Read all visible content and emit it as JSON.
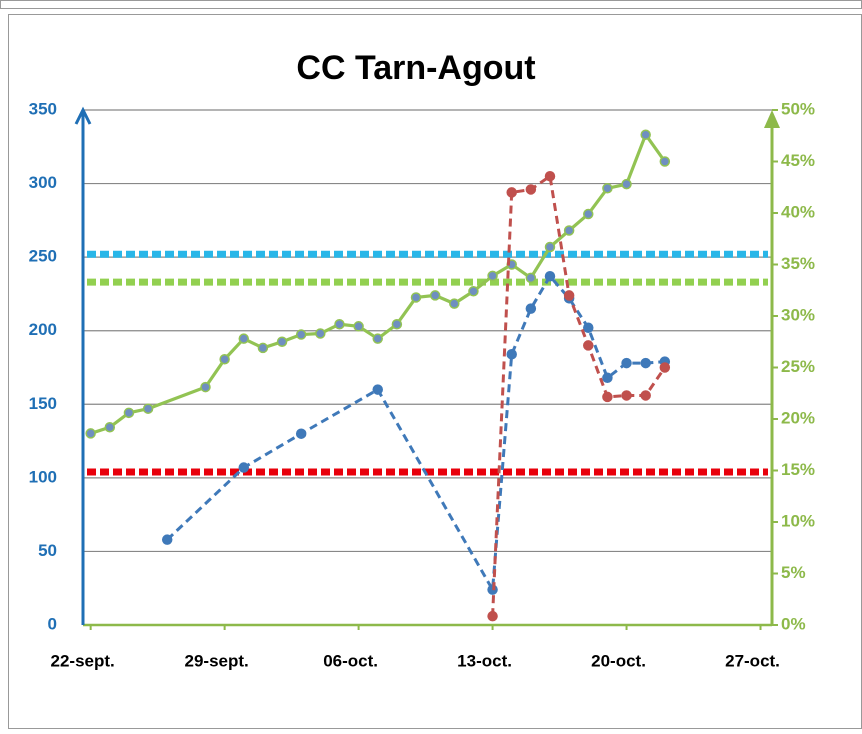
{
  "chart_data": {
    "type": "line",
    "title": "CC Tarn-Agout",
    "xlim": [
      -0.4,
      35.6
    ],
    "xticks": [
      {
        "value": 0,
        "label": "22-sept."
      },
      {
        "value": 7,
        "label": "29-sept."
      },
      {
        "value": 14,
        "label": "06-oct."
      },
      {
        "value": 21,
        "label": "13-oct."
      },
      {
        "value": 28,
        "label": "20-oct."
      },
      {
        "value": 35,
        "label": "27-oct."
      }
    ],
    "ylim": [
      0,
      350
    ],
    "yticks": [
      0,
      50,
      100,
      150,
      200,
      250,
      300,
      350
    ],
    "y2lim": [
      0,
      50
    ],
    "y2ticks": [
      {
        "value": 0,
        "label": "0%"
      },
      {
        "value": 5,
        "label": "5%"
      },
      {
        "value": 10,
        "label": "10%"
      },
      {
        "value": 15,
        "label": "15%"
      },
      {
        "value": 20,
        "label": "20%"
      },
      {
        "value": 25,
        "label": "25%"
      },
      {
        "value": 30,
        "label": "30%"
      },
      {
        "value": 35,
        "label": "35%"
      },
      {
        "value": 40,
        "label": "40%"
      },
      {
        "value": 45,
        "label": "45%"
      },
      {
        "value": 50,
        "label": "50%"
      }
    ],
    "grid": true,
    "y_color": "#1f6fb5",
    "y2_color": "#8db94a",
    "reference_lines": [
      {
        "value": 252,
        "color": "#29b6e8"
      },
      {
        "value": 233,
        "color": "#92d050"
      },
      {
        "value": 104,
        "color": "#e8000b"
      }
    ],
    "series": [
      {
        "color": "#92c353",
        "axis": "y2",
        "dashed": false,
        "x": [
          0,
          1,
          2,
          3,
          6,
          7,
          8,
          9,
          10,
          11,
          12,
          13,
          14,
          15,
          16,
          17,
          18,
          19,
          20,
          21,
          22,
          23,
          24,
          25,
          26,
          27,
          28,
          29,
          30
        ],
        "values": [
          18.6,
          19.2,
          20.6,
          21.0,
          23.1,
          25.8,
          27.8,
          26.9,
          27.5,
          28.2,
          28.3,
          29.2,
          29.0,
          27.8,
          29.2,
          31.8,
          32.0,
          31.2,
          32.4,
          33.9,
          35.0,
          33.7,
          36.7,
          38.3,
          39.9,
          42.4,
          42.8,
          47.6,
          45.0
        ]
      },
      {
        "color": "#3f79b9",
        "axis": "y",
        "dashed": true,
        "x": [
          4,
          8,
          11,
          15,
          21,
          22,
          23,
          24,
          25,
          26,
          27,
          28,
          29,
          30
        ],
        "values": [
          58,
          107,
          130,
          160,
          24,
          184,
          215,
          237,
          222,
          202,
          168,
          178,
          178,
          179
        ]
      },
      {
        "color": "#c0504d",
        "axis": "y",
        "dashed": true,
        "x": [
          21,
          22,
          23,
          24,
          25,
          26,
          27,
          28,
          29,
          30
        ],
        "values": [
          6,
          294,
          296,
          305,
          224,
          190,
          155,
          156,
          156,
          175
        ]
      }
    ]
  }
}
